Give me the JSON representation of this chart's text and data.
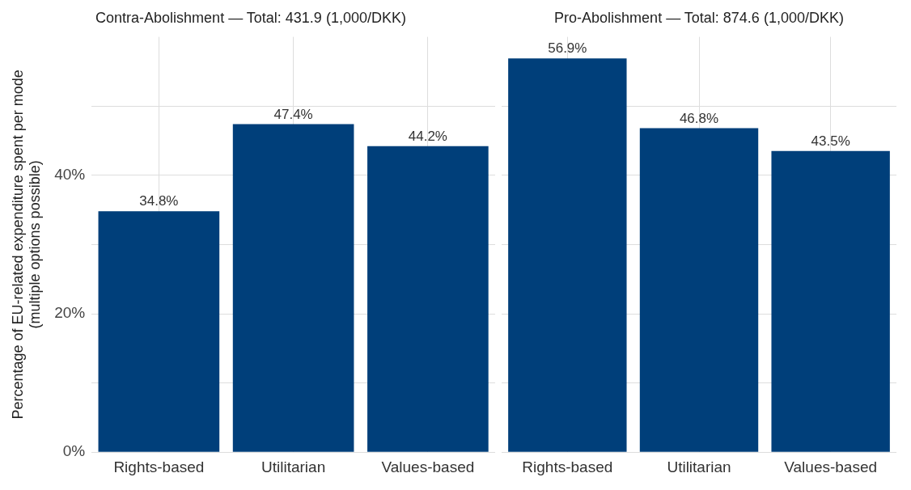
{
  "chart_data": [
    {
      "type": "bar",
      "title": "Contra-Abolishment — Total: 431.9 (1,000/DKK)",
      "ylabel": "Percentage of EU-related expenditure spent per mode\n(multiple options possible)",
      "categories": [
        "Rights-based",
        "Utilitarian",
        "Values-based"
      ],
      "values": [
        34.8,
        47.4,
        44.2
      ],
      "value_labels": [
        "34.8%",
        "47.4%",
        "44.2%"
      ],
      "color": "#003f7a",
      "ylim": [
        0,
        60
      ],
      "yticks": [
        {
          "value": 0,
          "label": "0%"
        },
        {
          "value": 10,
          "label": null
        },
        {
          "value": 20,
          "label": "20%"
        },
        {
          "value": 30,
          "label": null
        },
        {
          "value": 40,
          "label": "40%"
        },
        {
          "value": 50,
          "label": null
        }
      ],
      "grid": true
    },
    {
      "type": "bar",
      "title": "Pro-Abolishment — Total: 874.6 (1,000/DKK)",
      "categories": [
        "Rights-based",
        "Utilitarian",
        "Values-based"
      ],
      "values": [
        56.9,
        46.8,
        43.5
      ],
      "value_labels": [
        "56.9%",
        "46.8%",
        "43.5%"
      ],
      "color": "#003f7a",
      "ylim": [
        0,
        60
      ],
      "yticks": [
        {
          "value": 0,
          "label": null
        },
        {
          "value": 10,
          "label": null
        },
        {
          "value": 20,
          "label": null
        },
        {
          "value": 30,
          "label": null
        },
        {
          "value": 40,
          "label": null
        },
        {
          "value": 50,
          "label": null
        }
      ],
      "grid": true,
      "tick_labels": "x"
    }
  ]
}
